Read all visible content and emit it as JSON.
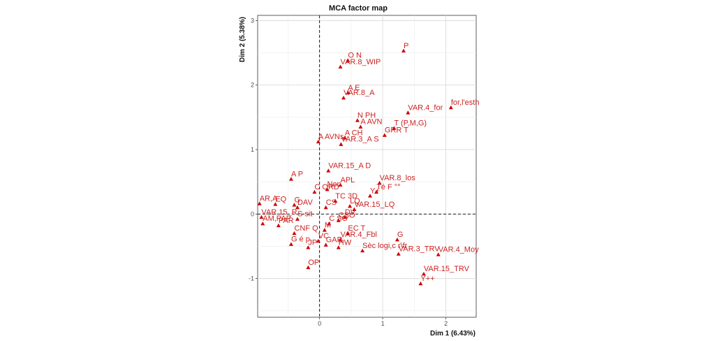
{
  "chart_data": {
    "type": "scatter",
    "title": "MCA factor map",
    "xlabel": "Dim 1 (6.43%)",
    "ylabel": "Dim 2 (5.38%)",
    "xlim": [
      -0.98,
      2.48
    ],
    "ylim": [
      -1.6,
      3.08
    ],
    "xticks": [
      0,
      1,
      2
    ],
    "yticks": [
      -1,
      0,
      1,
      2,
      3
    ],
    "grid": true,
    "reference_lines": {
      "x": 0,
      "y": 0
    },
    "color": "#cc0000",
    "points": [
      {
        "label": "P",
        "x": 1.33,
        "y": 2.53
      },
      {
        "label": "O N",
        "x": 0.45,
        "y": 2.38
      },
      {
        "label": "VAR.8_WIP",
        "x": 0.33,
        "y": 2.28
      },
      {
        "label": "A E",
        "x": 0.45,
        "y": 1.88
      },
      {
        "label": "VAR.8_A",
        "x": 0.38,
        "y": 1.8
      },
      {
        "label": "for,l'esth",
        "x": 2.08,
        "y": 1.65
      },
      {
        "label": "VAR.4_for",
        "x": 1.4,
        "y": 1.57
      },
      {
        "label": "N PH",
        "x": 0.6,
        "y": 1.45
      },
      {
        "label": "A AVN",
        "x": 0.65,
        "y": 1.35
      },
      {
        "label": "T (P,M,G)",
        "x": 1.18,
        "y": 1.33
      },
      {
        "label": "GRR T",
        "x": 1.03,
        "y": 1.22
      },
      {
        "label": "A CH",
        "x": 0.4,
        "y": 1.18
      },
      {
        "label": "A AVNs",
        "x": -0.02,
        "y": 1.12
      },
      {
        "label": "VAR.3_A S",
        "x": 0.34,
        "y": 1.08
      },
      {
        "label": "VAR.15_A D",
        "x": 0.14,
        "y": 0.67
      },
      {
        "label": "A P",
        "x": -0.45,
        "y": 0.54
      },
      {
        "label": "VAR.8_los",
        "x": 0.95,
        "y": 0.48
      },
      {
        "label": "APL",
        "x": 0.33,
        "y": 0.45
      },
      {
        "label": "Non",
        "x": 0.12,
        "y": 0.38
      },
      {
        "label": "C ORD",
        "x": -0.08,
        "y": 0.34
      },
      {
        "label": "Té F °°",
        "x": 0.9,
        "y": 0.34
      },
      {
        "label": "Y+",
        "x": 0.8,
        "y": 0.28
      },
      {
        "label": "TC 3D",
        "x": 0.25,
        "y": 0.2
      },
      {
        "label": "LQ",
        "x": 0.48,
        "y": 0.12
      },
      {
        "label": "VAR.15_LQ",
        "x": 0.55,
        "y": 0.07
      },
      {
        "label": "AR,A",
        "x": -0.95,
        "y": 0.16
      },
      {
        "label": "EQ",
        "x": -0.7,
        "y": 0.15
      },
      {
        "label": "G",
        "x": -0.4,
        "y": 0.14
      },
      {
        "label": "DAV",
        "x": -0.35,
        "y": 0.1
      },
      {
        "label": "CS",
        "x": 0.1,
        "y": 0.1
      },
      {
        "label": "VAR.15_R",
        "x": -0.92,
        "y": -0.05
      },
      {
        "label": "S sit",
        "x": -0.35,
        "y": -0.08
      },
      {
        "label": "DV",
        "x": 0.4,
        "y": -0.05
      },
      {
        "label": "CSO",
        "x": 0.3,
        "y": -0.1
      },
      {
        "label": "AM,PAP",
        "x": -0.9,
        "y": -0.15
      },
      {
        "label": "PAR",
        "x": -0.65,
        "y": -0.18
      },
      {
        "label": "C SO",
        "x": 0.15,
        "y": -0.15
      },
      {
        "label": "M",
        "x": 0.08,
        "y": -0.25
      },
      {
        "label": "EC T",
        "x": 0.45,
        "y": -0.3
      },
      {
        "label": "CNF Q",
        "x": -0.4,
        "y": -0.3
      },
      {
        "label": "VAR.4_Fbl",
        "x": 0.33,
        "y": -0.4
      },
      {
        "label": "G",
        "x": 1.23,
        "y": -0.4
      },
      {
        "label": "G é p",
        "x": -0.45,
        "y": -0.47
      },
      {
        "label": "JP",
        "x": -0.18,
        "y": -0.52
      },
      {
        "label": "VC",
        "x": -0.02,
        "y": -0.42
      },
      {
        "label": "GAR",
        "x": 0.1,
        "y": -0.48
      },
      {
        "label": "HW",
        "x": 0.3,
        "y": -0.52
      },
      {
        "label": "Sèc logi,c r\\fr",
        "x": 0.68,
        "y": -0.57
      },
      {
        "label": "VAR.3_TRV",
        "x": 1.25,
        "y": -0.62
      },
      {
        "label": "VAR.4_Moy",
        "x": 1.88,
        "y": -0.63
      },
      {
        "label": "OP",
        "x": -0.18,
        "y": -0.83
      },
      {
        "label": "VAR.15_TRV",
        "x": 1.65,
        "y": -0.93
      },
      {
        "label": "Y++",
        "x": 1.6,
        "y": -1.08
      }
    ]
  }
}
